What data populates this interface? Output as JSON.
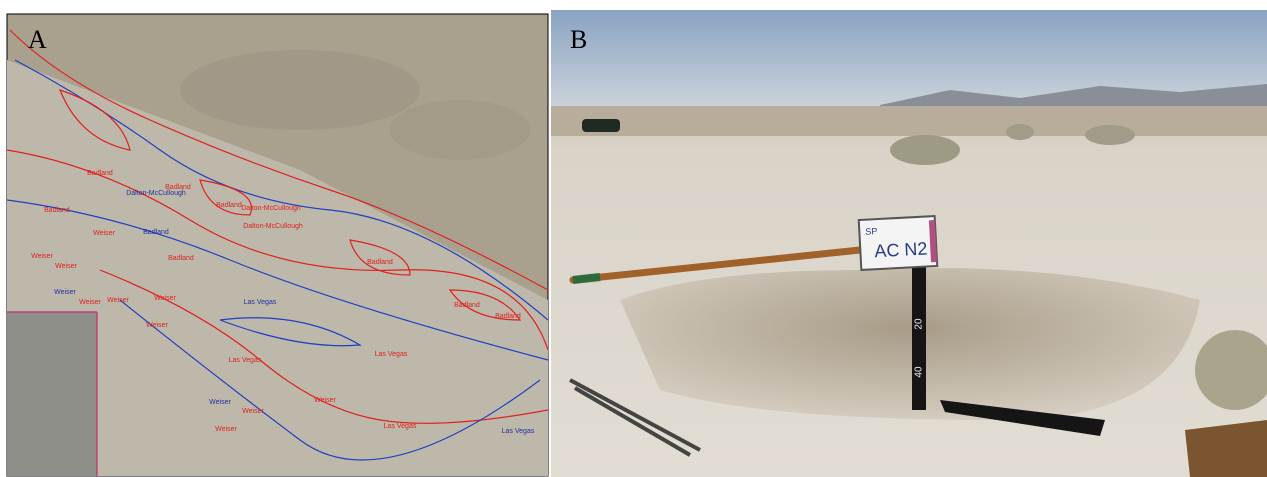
{
  "panel_a": {
    "label": "A",
    "map_labels": [
      {
        "text": "Badland",
        "color": "#e02020"
      },
      {
        "text": "Badland",
        "color": "#e02020"
      },
      {
        "text": "Dalton-McCullough",
        "color": "#2030a0"
      },
      {
        "text": "Badland",
        "color": "#e02020"
      },
      {
        "text": "Dalton-McCullough",
        "color": "#e02020"
      },
      {
        "text": "Badland",
        "color": "#e02020"
      },
      {
        "text": "Dalton-McCullough",
        "color": "#e02020"
      },
      {
        "text": "Badland",
        "color": "#2030a0"
      },
      {
        "text": "Weiser",
        "color": "#e02020"
      },
      {
        "text": "Badland",
        "color": "#e02020"
      },
      {
        "text": "Badland",
        "color": "#e02020"
      },
      {
        "text": "Weiser",
        "color": "#e02020"
      },
      {
        "text": "Weiser",
        "color": "#e02020"
      },
      {
        "text": "Weiser",
        "color": "#2030a0"
      },
      {
        "text": "Weiser",
        "color": "#e02020"
      },
      {
        "text": "Weiser",
        "color": "#e02020"
      },
      {
        "text": "Weiser",
        "color": "#e02020"
      },
      {
        "text": "Las Vegas",
        "color": "#2030a0"
      },
      {
        "text": "Badland",
        "color": "#e02020"
      },
      {
        "text": "Badland",
        "color": "#e02020"
      },
      {
        "text": "Weiser",
        "color": "#e02020"
      },
      {
        "text": "Las Vegas",
        "color": "#e02020"
      },
      {
        "text": "Las Vegas",
        "color": "#e02020"
      },
      {
        "text": "Weiser",
        "color": "#2030a0"
      },
      {
        "text": "Weiser",
        "color": "#e02020"
      },
      {
        "text": "Weiser",
        "color": "#e02020"
      },
      {
        "text": "Weiser",
        "color": "#e02020"
      },
      {
        "text": "Las Vegas",
        "color": "#e02020"
      },
      {
        "text": "Las Vegas",
        "color": "#2030a0"
      }
    ]
  },
  "panel_b": {
    "label": "B",
    "sign": {
      "line1": "SP",
      "line2": "AC N2"
    },
    "tape_marks": [
      "20",
      "40"
    ]
  }
}
